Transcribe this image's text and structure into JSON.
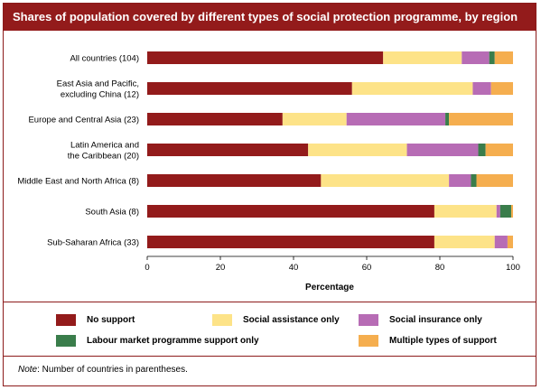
{
  "title": "Shares of population covered by different types of social protection programme, by region",
  "note_prefix": "Note",
  "note_text": ": Number of countries in parentheses.",
  "colors": {
    "no_support": "#931b1b",
    "social_assistance": "#fde388",
    "social_insurance": "#b76cb5",
    "labour_market": "#3a7d4b",
    "multiple": "#f5ae4f",
    "frame": "#8c1b1b"
  },
  "chart_data": {
    "type": "bar",
    "orientation": "horizontal",
    "stacked": true,
    "categories": [
      [
        "All countries (104)"
      ],
      [
        "East Asia and Pacific,",
        "excluding China (12)"
      ],
      [
        "Europe and Central Asia (23)"
      ],
      [
        "Latin America and",
        "the Caribbean (20)"
      ],
      [
        "Middle East and North Africa (8)"
      ],
      [
        "South Asia (8)"
      ],
      [
        "Sub-Saharan Africa (33)"
      ]
    ],
    "series": [
      {
        "name": "No support",
        "color_key": "no_support",
        "values": [
          64.5,
          56,
          37,
          44,
          47.5,
          78.5,
          78.5
        ]
      },
      {
        "name": "Social assistance only",
        "color_key": "social_assistance",
        "values": [
          21.5,
          33,
          17.5,
          27,
          35,
          17,
          16.5
        ]
      },
      {
        "name": "Social insurance only",
        "color_key": "social_insurance",
        "values": [
          7.5,
          5,
          27,
          19.5,
          6,
          1,
          3.5
        ]
      },
      {
        "name": "Labour market programme support only",
        "color_key": "labour_market",
        "values": [
          1.5,
          0,
          1,
          2,
          1.5,
          3,
          0
        ]
      },
      {
        "name": "Multiple types of support",
        "color_key": "multiple",
        "values": [
          5,
          6,
          17.5,
          7.5,
          10,
          0.5,
          1.5
        ]
      }
    ],
    "xlabel": "Percentage",
    "xlim": [
      0,
      100
    ],
    "xticks": [
      0,
      20,
      40,
      60,
      80,
      100
    ],
    "grid": false,
    "legend_position": "bottom"
  }
}
